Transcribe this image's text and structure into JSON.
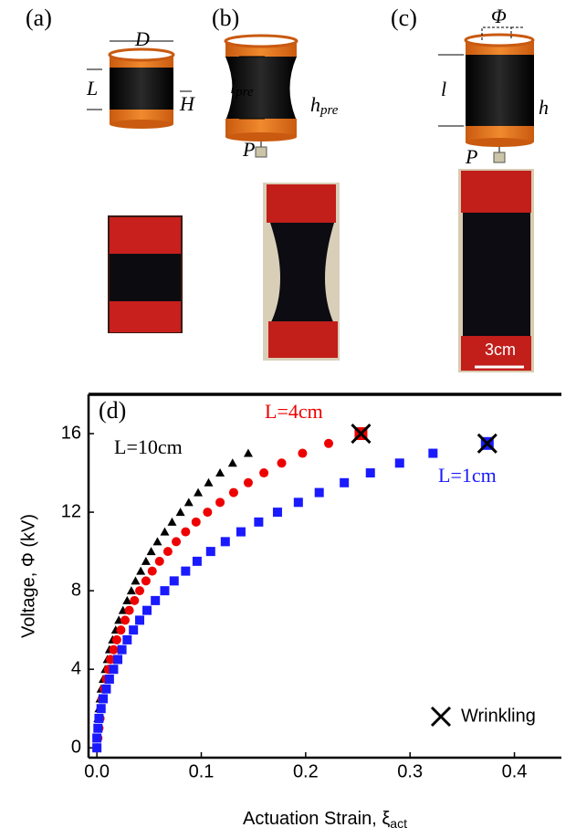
{
  "figure": {
    "labels": [
      "(a)",
      "(b)",
      "(c)",
      "D",
      "L",
      "H",
      "l",
      "pre",
      "h",
      "pre",
      "P",
      "l",
      "h",
      "Φ",
      "P",
      "3cm"
    ]
  },
  "chart_data": {
    "type": "scatter",
    "panel_label": "(d)",
    "x_label": "Actuation Strain, ξ",
    "x_label_sub": "act",
    "y_label": "Voltage, Φ (kV)",
    "xlim": [
      -0.008,
      0.445
    ],
    "ylim": [
      -0.5,
      18
    ],
    "xticks": [
      {
        "value": 0,
        "label": "0.0"
      },
      0.1,
      0.2,
      0.3,
      0.4
    ],
    "yticks": [
      0,
      4,
      8,
      12,
      16
    ],
    "legend": "lower right",
    "series": [
      {
        "name": "L=10cm",
        "color": "#000000",
        "marker": "triangle",
        "x": [
          0,
          0,
          0.001,
          0.001,
          0.002,
          0.003,
          0.004,
          0.006,
          0.008,
          0.01,
          0.012,
          0.015,
          0.018,
          0.021,
          0.025,
          0.029,
          0.033,
          0.037,
          0.042,
          0.047,
          0.052,
          0.058,
          0.065,
          0.072,
          0.08,
          0.088,
          0.097,
          0.107,
          0.118,
          0.13,
          0.145
        ],
        "values": [
          0,
          0.5,
          1,
          1.5,
          2,
          2.5,
          3,
          3.5,
          4,
          4.5,
          5,
          5.5,
          6,
          6.5,
          7,
          7.5,
          8,
          8.5,
          9,
          9.5,
          10,
          10.5,
          11,
          11.5,
          12,
          12.5,
          13,
          13.5,
          14,
          14.5,
          15
        ]
      },
      {
        "name": "L=4cm",
        "color": "#ee0000",
        "marker": "circle",
        "x": [
          0,
          0.001,
          0.002,
          0.003,
          0.004,
          0.005,
          0.007,
          0.009,
          0.011,
          0.013,
          0.016,
          0.019,
          0.023,
          0.027,
          0.031,
          0.036,
          0.041,
          0.047,
          0.053,
          0.06,
          0.068,
          0.076,
          0.085,
          0.095,
          0.106,
          0.118,
          0.131,
          0.145,
          0.16,
          0.177,
          0.197,
          0.222
        ],
        "values": [
          0,
          0.5,
          1,
          1.5,
          2,
          2.5,
          3,
          3.5,
          4,
          4.5,
          5,
          5.5,
          6,
          6.5,
          7,
          7.5,
          8,
          8.5,
          9,
          9.5,
          10,
          10.5,
          11,
          11.5,
          12,
          12.5,
          13,
          13.5,
          14,
          14.5,
          15,
          15.5
        ]
      },
      {
        "name": "L=1cm",
        "color": "#1a1aff",
        "marker": "square",
        "x": [
          0,
          0,
          0.001,
          0.002,
          0.004,
          0.006,
          0.009,
          0.012,
          0.016,
          0.02,
          0.024,
          0.029,
          0.035,
          0.041,
          0.048,
          0.056,
          0.065,
          0.074,
          0.085,
          0.096,
          0.109,
          0.123,
          0.138,
          0.155,
          0.173,
          0.193,
          0.213,
          0.237,
          0.262,
          0.29,
          0.322
        ],
        "values": [
          0,
          0.5,
          1,
          1.5,
          2,
          2.5,
          3,
          3.5,
          4,
          4.5,
          5,
          5.5,
          6,
          6.5,
          7,
          7.5,
          8,
          8.5,
          9,
          9.5,
          10,
          10.5,
          11,
          11.5,
          12,
          12.5,
          13,
          13.5,
          14,
          14.5,
          15
        ]
      },
      {
        "name": "Wrinkling",
        "color": "#000000",
        "marker": "x",
        "point_colors": [
          "#ee0000",
          "#1a1aff"
        ],
        "x": [
          0.253,
          0.374
        ],
        "values": [
          16,
          15.5
        ]
      }
    ]
  }
}
